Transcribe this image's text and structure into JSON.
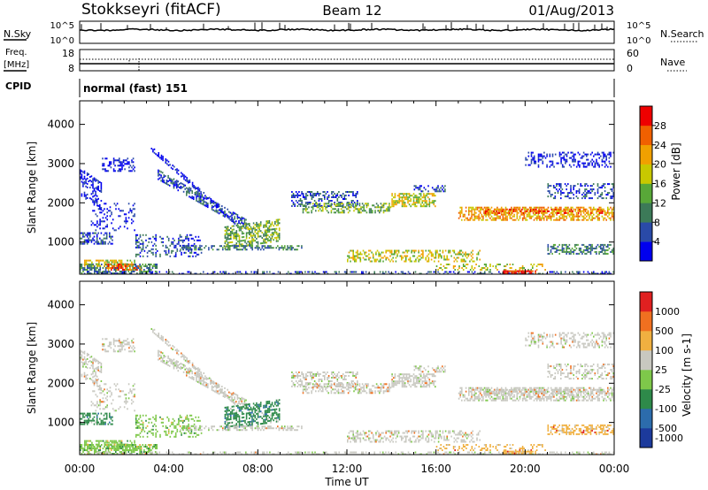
{
  "header": {
    "station": "Stokkseyri (fitACF)",
    "beam": "Beam 12",
    "date": "01/Aug/2013"
  },
  "noise_panel": {
    "left_label": "N.Sky",
    "right_label": "N.Search",
    "left_ticks": [
      "10^5",
      "10^0"
    ],
    "right_ticks": [
      "10^5",
      "10^0"
    ]
  },
  "freq_panel": {
    "label_line1": "Freq.",
    "label_line2": "[MHz]",
    "left_ticks": [
      "18",
      "8"
    ],
    "right_ticks": [
      "60",
      "0"
    ],
    "right_label": "Nave"
  },
  "cpid": {
    "label": "CPID",
    "mode": "normal (fast) 151"
  },
  "chart_data": [
    {
      "type": "heatmap",
      "name": "Power",
      "ylabel": "Slant Range [km]",
      "ylim": [
        180,
        4600
      ],
      "yticks": [
        "1000",
        "2000",
        "3000",
        "4000"
      ],
      "ytick_values": [
        1000,
        2000,
        3000,
        4000
      ],
      "x_range_hours": [
        0,
        24
      ],
      "colorbar": {
        "label": "Power [dB]",
        "ticks": [
          "4",
          "8",
          "12",
          "16",
          "20",
          "24",
          "28"
        ],
        "tick_values": [
          4,
          8,
          12,
          16,
          20,
          24,
          28
        ],
        "colors": [
          "#0000ee",
          "#2a4aa8",
          "#3c7a58",
          "#58a838",
          "#c8c800",
          "#f0a000",
          "#f06000",
          "#ee0000"
        ]
      }
    },
    {
      "type": "heatmap",
      "name": "Velocity",
      "ylabel": "Slant Range [km]",
      "ylim": [
        180,
        4600
      ],
      "yticks": [
        "1000",
        "2000",
        "3000",
        "4000"
      ],
      "ytick_values": [
        1000,
        2000,
        3000,
        4000
      ],
      "x_range_hours": [
        0,
        24
      ],
      "colorbar": {
        "label": "Velocity [m s-1]",
        "ticks": [
          "1000",
          "500",
          "100",
          "25",
          "-25",
          "-100",
          "-500",
          "-1000"
        ],
        "colors": [
          "#1c3a9c",
          "#2c6cac",
          "#2e8a4a",
          "#7ec84a",
          "#c8c8c0",
          "#f0b040",
          "#f07020",
          "#e02020"
        ]
      }
    }
  ],
  "xaxis": {
    "label": "Time UT",
    "ticks": [
      "00:00",
      "04:00",
      "08:00",
      "12:00",
      "16:00",
      "20:00",
      "00:00"
    ]
  }
}
